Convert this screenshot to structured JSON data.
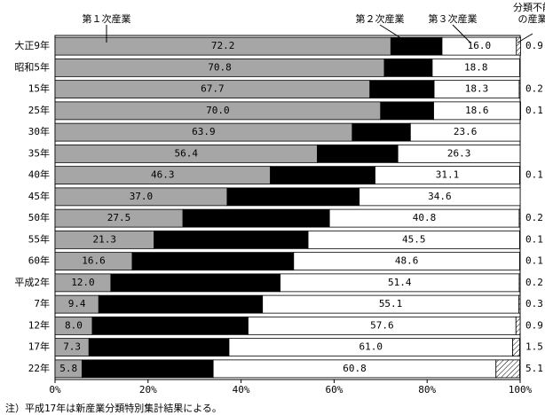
{
  "chart_data": {
    "type": "stacked-barh",
    "categories": [
      "大正9年",
      "昭和5年",
      "15年",
      "25年",
      "30年",
      "35年",
      "40年",
      "45年",
      "50年",
      "55年",
      "60年",
      "平成2年",
      "7年",
      "12年",
      "17年",
      "22年"
    ],
    "series": [
      {
        "name": "第１次産業",
        "color": "#a6a6a6",
        "values": [
          72.2,
          70.8,
          67.7,
          70.0,
          63.9,
          56.4,
          46.3,
          37.0,
          27.5,
          21.3,
          16.6,
          12.0,
          9.4,
          8.0,
          7.3,
          5.8
        ],
        "value_labels": [
          "72.2",
          "70.8",
          "67.7",
          "70.0",
          "63.9",
          "56.4",
          "46.3",
          "37.0",
          "27.5",
          "21.3",
          "16.6",
          "12.0",
          "9.4",
          "8.0",
          "7.3",
          "5.8"
        ]
      },
      {
        "name": "第２次産業",
        "color": "#000000",
        "values": [
          11.0,
          10.3,
          13.8,
          11.4,
          12.5,
          17.3,
          22.5,
          28.4,
          31.5,
          33.1,
          34.7,
          36.4,
          35.2,
          33.5,
          30.1,
          28.2
        ],
        "value_labels": [
          "11.0",
          "10.3",
          "13.8",
          "11.4",
          "12.5",
          "17.3",
          "22.5",
          "28.4",
          "31.5",
          "33.1",
          "34.7",
          "36.4",
          "35.2",
          "33.5",
          "30.1",
          "28.2"
        ]
      },
      {
        "name": "第３次産業",
        "color": "#ffffff",
        "values": [
          16.0,
          18.8,
          18.3,
          18.6,
          23.6,
          26.3,
          31.1,
          34.6,
          40.8,
          45.5,
          48.6,
          51.4,
          55.1,
          57.6,
          61.0,
          60.8
        ],
        "value_labels": [
          "16.0",
          "18.8",
          "18.3",
          "18.6",
          "23.6",
          "26.3",
          "31.1",
          "34.6",
          "40.8",
          "45.5",
          "48.6",
          "51.4",
          "55.1",
          "57.6",
          "61.0",
          "60.8"
        ]
      },
      {
        "name": "分類不能の産業",
        "color": "#000000",
        "hatch": true,
        "values": [
          0.9,
          null,
          0.2,
          0.1,
          null,
          null,
          0.1,
          null,
          0.2,
          0.1,
          0.1,
          0.2,
          0.3,
          0.9,
          1.5,
          5.1
        ],
        "value_labels": [
          "0.9",
          null,
          "0.2",
          "0.1",
          null,
          null,
          "0.1",
          null,
          "0.2",
          "0.1",
          "0.1",
          "0.2",
          "0.3",
          "0.9",
          "1.5",
          "5.1"
        ]
      }
    ],
    "xlim": [
      0,
      100
    ],
    "xticks": [
      {
        "value": 0,
        "label": "0%"
      },
      {
        "value": 20,
        "label": "20%"
      },
      {
        "value": 40,
        "label": "40%"
      },
      {
        "value": 60,
        "label": "60%"
      },
      {
        "value": 80,
        "label": "80%"
      },
      {
        "value": 100,
        "label": "100%"
      }
    ],
    "note": "注）平成17年は新産業分類特別集計結果による。"
  }
}
